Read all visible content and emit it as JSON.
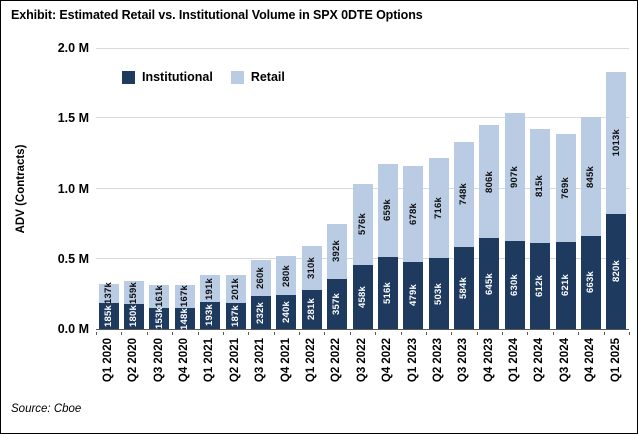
{
  "chart_data": {
    "type": "bar",
    "stacked": true,
    "title": "Exhibit: Estimated Retail vs. Institutional Volume in SPX 0DTE Options",
    "ylabel": "ADV (Contracts)",
    "xlabel": "",
    "ylim_contracts": [
      0,
      2000000
    ],
    "grid": true,
    "legend_position": "top-left-inside",
    "value_suffix": "k",
    "yticks": [
      {
        "value_k": 0,
        "label": "0.0 M"
      },
      {
        "value_k": 500,
        "label": "0.5 M"
      },
      {
        "value_k": 1000,
        "label": "1.0 M"
      },
      {
        "value_k": 1500,
        "label": "1.5 M"
      },
      {
        "value_k": 2000,
        "label": "2.0 M"
      }
    ],
    "categories": [
      "Q1 2020",
      "Q2 2020",
      "Q3 2020",
      "Q4 2020",
      "Q1 2021",
      "Q2 2021",
      "Q3 2021",
      "Q4 2021",
      "Q1 2022",
      "Q2 2022",
      "Q3 2022",
      "Q4 2022",
      "Q1 2023",
      "Q2 2023",
      "Q3 2023",
      "Q4 2023",
      "Q1 2024",
      "Q2 2024",
      "Q3 2024",
      "Q4 2024",
      "Q1 2025"
    ],
    "series": [
      {
        "name": "Institutional",
        "color": "#1f3a5f",
        "label_color": "#ffffff",
        "values_k": [
          185,
          180,
          153,
          148,
          193,
          187,
          232,
          240,
          281,
          357,
          458,
          516,
          479,
          503,
          584,
          645,
          630,
          612,
          621,
          663,
          820
        ]
      },
      {
        "name": "Retail",
        "color": "#b9cce3",
        "label_color": "#0d0d0d",
        "values_k": [
          137,
          159,
          161,
          167,
          191,
          201,
          260,
          280,
          310,
          392,
          576,
          659,
          678,
          716,
          748,
          806,
          907,
          815,
          769,
          845,
          1013
        ]
      }
    ]
  },
  "source_note": "Source: Cboe",
  "colors": {
    "institutional": "#1f3a5f",
    "retail": "#b9cce3",
    "gridline": "#d9d9d9",
    "axis_line": "#595959",
    "text": "#000000",
    "background": "#ffffff"
  }
}
